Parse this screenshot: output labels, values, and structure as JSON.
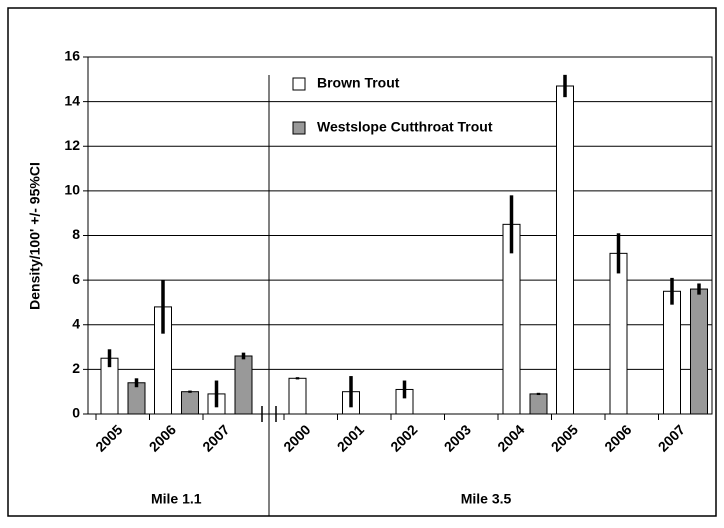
{
  "chart_data": {
    "type": "bar",
    "y_label": "Density/100' +/- 95%CI",
    "groups": [
      {
        "label": "Mile 1.1",
        "categories": [
          "2005",
          "2006",
          "2007"
        ]
      },
      {
        "label": "Mile 3.5",
        "categories": [
          "2000",
          "2001",
          "2002",
          "2003",
          "2004",
          "2005",
          "2006",
          "2007"
        ]
      }
    ],
    "series": [
      {
        "name": "Brown Trout",
        "color": "#ffffff",
        "values": [
          [
            2.5,
            4.8,
            0.9
          ],
          [
            1.6,
            1.0,
            1.1,
            null,
            8.5,
            14.7,
            7.2,
            5.5
          ]
        ],
        "errors": [
          [
            0.4,
            1.2,
            0.6
          ],
          [
            0.05,
            0.7,
            0.4,
            null,
            1.3,
            0.5,
            0.9,
            0.6
          ]
        ]
      },
      {
        "name": "Westslope Cutthroat Trout",
        "color": "#999999",
        "values": [
          [
            1.4,
            1.0,
            2.6
          ],
          [
            null,
            null,
            null,
            null,
            0.9,
            null,
            null,
            5.6
          ]
        ],
        "errors": [
          [
            0.2,
            0.05,
            0.15
          ],
          [
            null,
            null,
            null,
            null,
            0.05,
            null,
            null,
            0.25
          ]
        ]
      }
    ],
    "ylim": [
      0,
      16
    ],
    "yticks": [
      0,
      2,
      4,
      6,
      8,
      10,
      12,
      14,
      16
    ],
    "grid": true
  }
}
